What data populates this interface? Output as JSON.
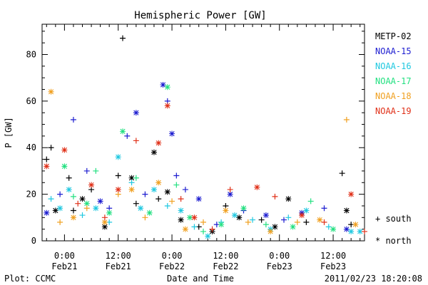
{
  "chart_data": {
    "type": "scatter",
    "title": "Hemispheric Power [GW]",
    "xlabel": "Date and Time",
    "ylabel": "P [GW]",
    "x_unit": "hours",
    "xlim": [
      "2011-02-20 19:00",
      "2011-02-23 19:00"
    ],
    "ylim": [
      0,
      93
    ],
    "yticks": [
      0,
      20,
      40,
      60,
      80
    ],
    "xticks": [
      {
        "time": "2011-02-21 00:00",
        "line1": "0:00",
        "line2": "Feb21"
      },
      {
        "time": "2011-02-21 12:00",
        "line1": "12:00",
        "line2": "Feb21"
      },
      {
        "time": "2011-02-22 00:00",
        "line1": "0:00",
        "line2": "Feb22"
      },
      {
        "time": "2011-02-22 12:00",
        "line1": "12:00",
        "line2": "Feb22"
      },
      {
        "time": "2011-02-23 00:00",
        "line1": "0:00",
        "line2": "Feb23"
      },
      {
        "time": "2011-02-23 12:00",
        "line1": "12:00",
        "line2": "Feb23"
      }
    ],
    "markers": {
      "south": "+",
      "north": "*"
    },
    "series": [
      {
        "name": "METP-02",
        "color": "#000000",
        "points": [
          {
            "x": "2011-02-20 20:00",
            "y": 35,
            "h": "S"
          },
          {
            "x": "2011-02-20 21:00",
            "y": 40,
            "h": "S"
          },
          {
            "x": "2011-02-20 22:00",
            "y": 13,
            "h": "N"
          },
          {
            "x": "2011-02-21 01:00",
            "y": 27,
            "h": "S"
          },
          {
            "x": "2011-02-21 02:00",
            "y": 13,
            "h": "S"
          },
          {
            "x": "2011-02-21 04:00",
            "y": 18,
            "h": "N"
          },
          {
            "x": "2011-02-21 06:00",
            "y": 22,
            "h": "S"
          },
          {
            "x": "2011-02-21 09:00",
            "y": 6,
            "h": "N"
          },
          {
            "x": "2011-02-21 12:00",
            "y": 28,
            "h": "S"
          },
          {
            "x": "2011-02-21 13:00",
            "y": 87,
            "h": "S"
          },
          {
            "x": "2011-02-21 15:00",
            "y": 27,
            "h": "N"
          },
          {
            "x": "2011-02-21 16:00",
            "y": 16,
            "h": "S"
          },
          {
            "x": "2011-02-21 20:00",
            "y": 38,
            "h": "N"
          },
          {
            "x": "2011-02-21 21:00",
            "y": 18,
            "h": "S"
          },
          {
            "x": "2011-02-21 23:00",
            "y": 21,
            "h": "N"
          },
          {
            "x": "2011-02-22 02:00",
            "y": 9,
            "h": "N"
          },
          {
            "x": "2011-02-22 06:00",
            "y": 6,
            "h": "S"
          },
          {
            "x": "2011-02-22 09:00",
            "y": 4,
            "h": "N"
          },
          {
            "x": "2011-02-22 12:00",
            "y": 15,
            "h": "S"
          },
          {
            "x": "2011-02-22 15:00",
            "y": 10,
            "h": "N"
          },
          {
            "x": "2011-02-22 20:00",
            "y": 9,
            "h": "S"
          },
          {
            "x": "2011-02-22 23:00",
            "y": 6,
            "h": "N"
          },
          {
            "x": "2011-02-23 02:00",
            "y": 18,
            "h": "N"
          },
          {
            "x": "2011-02-23 06:00",
            "y": 8,
            "h": "S"
          },
          {
            "x": "2011-02-23 14:00",
            "y": 29,
            "h": "S"
          },
          {
            "x": "2011-02-23 15:00",
            "y": 13,
            "h": "N"
          },
          {
            "x": "2011-02-23 16:00",
            "y": 7,
            "h": "S"
          }
        ]
      },
      {
        "name": "NOAA-15",
        "color": "#1c1cd0",
        "points": [
          {
            "x": "2011-02-20 20:00",
            "y": 12,
            "h": "N"
          },
          {
            "x": "2011-02-20 23:00",
            "y": 20,
            "h": "S"
          },
          {
            "x": "2011-02-21 02:00",
            "y": 52,
            "h": "S"
          },
          {
            "x": "2011-02-21 05:00",
            "y": 30,
            "h": "S"
          },
          {
            "x": "2011-02-21 08:00",
            "y": 17,
            "h": "N"
          },
          {
            "x": "2011-02-21 10:00",
            "y": 14,
            "h": "S"
          },
          {
            "x": "2011-02-21 14:00",
            "y": 45,
            "h": "S"
          },
          {
            "x": "2011-02-21 16:00",
            "y": 55,
            "h": "N"
          },
          {
            "x": "2011-02-21 18:00",
            "y": 20,
            "h": "S"
          },
          {
            "x": "2011-02-21 22:00",
            "y": 67,
            "h": "N"
          },
          {
            "x": "2011-02-21 23:00",
            "y": 60,
            "h": "S"
          },
          {
            "x": "2011-02-22 00:00",
            "y": 46,
            "h": "N"
          },
          {
            "x": "2011-02-22 01:00",
            "y": 28,
            "h": "S"
          },
          {
            "x": "2011-02-22 03:00",
            "y": 22,
            "h": "S"
          },
          {
            "x": "2011-02-22 06:00",
            "y": 18,
            "h": "N"
          },
          {
            "x": "2011-02-22 10:00",
            "y": 7,
            "h": "S"
          },
          {
            "x": "2011-02-22 13:00",
            "y": 20,
            "h": "N"
          },
          {
            "x": "2011-02-22 16:00",
            "y": 13,
            "h": "S"
          },
          {
            "x": "2011-02-22 21:00",
            "y": 11,
            "h": "N"
          },
          {
            "x": "2011-02-23 01:00",
            "y": 9,
            "h": "S"
          },
          {
            "x": "2011-02-23 05:00",
            "y": 12,
            "h": "N"
          },
          {
            "x": "2011-02-23 10:00",
            "y": 14,
            "h": "S"
          },
          {
            "x": "2011-02-23 15:00",
            "y": 5,
            "h": "N"
          }
        ]
      },
      {
        "name": "NOAA-16",
        "color": "#1fc8e0",
        "points": [
          {
            "x": "2011-02-20 21:00",
            "y": 18,
            "h": "S"
          },
          {
            "x": "2011-02-20 23:00",
            "y": 14,
            "h": "N"
          },
          {
            "x": "2011-02-21 01:00",
            "y": 22,
            "h": "N"
          },
          {
            "x": "2011-02-21 04:00",
            "y": 11,
            "h": "S"
          },
          {
            "x": "2011-02-21 07:00",
            "y": 14,
            "h": "N"
          },
          {
            "x": "2011-02-21 10:00",
            "y": 8,
            "h": "S"
          },
          {
            "x": "2011-02-21 12:00",
            "y": 36,
            "h": "N"
          },
          {
            "x": "2011-02-21 15:00",
            "y": 25,
            "h": "S"
          },
          {
            "x": "2011-02-21 17:00",
            "y": 14,
            "h": "N"
          },
          {
            "x": "2011-02-21 20:00",
            "y": 22,
            "h": "N"
          },
          {
            "x": "2011-02-21 23:00",
            "y": 15,
            "h": "S"
          },
          {
            "x": "2011-02-22 02:00",
            "y": 13,
            "h": "N"
          },
          {
            "x": "2011-02-22 05:00",
            "y": 6,
            "h": "S"
          },
          {
            "x": "2011-02-22 08:00",
            "y": 2,
            "h": "N"
          },
          {
            "x": "2011-02-22 11:00",
            "y": 8,
            "h": "S"
          },
          {
            "x": "2011-02-22 14:00",
            "y": 11,
            "h": "N"
          },
          {
            "x": "2011-02-22 18:00",
            "y": 9,
            "h": "S"
          },
          {
            "x": "2011-02-22 22:00",
            "y": 5,
            "h": "N"
          },
          {
            "x": "2011-02-23 02:00",
            "y": 10,
            "h": "S"
          },
          {
            "x": "2011-02-23 06:00",
            "y": 13,
            "h": "N"
          },
          {
            "x": "2011-02-23 11:00",
            "y": 6,
            "h": "S"
          },
          {
            "x": "2011-02-23 16:00",
            "y": 4,
            "h": "N"
          },
          {
            "x": "2011-02-23 18:00",
            "y": 4,
            "h": "N"
          }
        ]
      },
      {
        "name": "NOAA-17",
        "color": "#22e080",
        "points": [
          {
            "x": "2011-02-21 00:00",
            "y": 32,
            "h": "N"
          },
          {
            "x": "2011-02-21 02:00",
            "y": 19,
            "h": "S"
          },
          {
            "x": "2011-02-21 05:00",
            "y": 16,
            "h": "N"
          },
          {
            "x": "2011-02-21 07:00",
            "y": 30,
            "h": "S"
          },
          {
            "x": "2011-02-21 10:00",
            "y": 12,
            "h": "N"
          },
          {
            "x": "2011-02-21 13:00",
            "y": 47,
            "h": "N"
          },
          {
            "x": "2011-02-21 16:00",
            "y": 27,
            "h": "S"
          },
          {
            "x": "2011-02-21 19:00",
            "y": 12,
            "h": "N"
          },
          {
            "x": "2011-02-21 23:00",
            "y": 66,
            "h": "N"
          },
          {
            "x": "2011-02-22 01:00",
            "y": 24,
            "h": "S"
          },
          {
            "x": "2011-02-22 04:00",
            "y": 10,
            "h": "N"
          },
          {
            "x": "2011-02-22 07:00",
            "y": 4,
            "h": "S"
          },
          {
            "x": "2011-02-22 11:00",
            "y": 7,
            "h": "N"
          },
          {
            "x": "2011-02-22 16:00",
            "y": 14,
            "h": "N"
          },
          {
            "x": "2011-02-22 21:00",
            "y": 7,
            "h": "S"
          },
          {
            "x": "2011-02-23 03:00",
            "y": 6,
            "h": "N"
          },
          {
            "x": "2011-02-23 07:00",
            "y": 17,
            "h": "S"
          },
          {
            "x": "2011-02-23 12:00",
            "y": 5,
            "h": "N"
          }
        ]
      },
      {
        "name": "NOAA-18",
        "color": "#f0a020",
        "points": [
          {
            "x": "2011-02-20 21:00",
            "y": 64,
            "h": "N"
          },
          {
            "x": "2011-02-20 23:00",
            "y": 8,
            "h": "S"
          },
          {
            "x": "2011-02-21 02:00",
            "y": 10,
            "h": "N"
          },
          {
            "x": "2011-02-21 05:00",
            "y": 14,
            "h": "S"
          },
          {
            "x": "2011-02-21 09:00",
            "y": 8,
            "h": "N"
          },
          {
            "x": "2011-02-21 12:00",
            "y": 20,
            "h": "S"
          },
          {
            "x": "2011-02-21 15:00",
            "y": 22,
            "h": "N"
          },
          {
            "x": "2011-02-21 18:00",
            "y": 10,
            "h": "S"
          },
          {
            "x": "2011-02-21 21:00",
            "y": 25,
            "h": "N"
          },
          {
            "x": "2011-02-22 00:00",
            "y": 17,
            "h": "S"
          },
          {
            "x": "2011-02-22 03:00",
            "y": 5,
            "h": "N"
          },
          {
            "x": "2011-02-22 07:00",
            "y": 8,
            "h": "S"
          },
          {
            "x": "2011-02-22 12:00",
            "y": 13,
            "h": "N"
          },
          {
            "x": "2011-02-22 17:00",
            "y": 8,
            "h": "S"
          },
          {
            "x": "2011-02-22 22:00",
            "y": 4,
            "h": "N"
          },
          {
            "x": "2011-02-23 04:00",
            "y": 8,
            "h": "S"
          },
          {
            "x": "2011-02-23 09:00",
            "y": 9,
            "h": "N"
          },
          {
            "x": "2011-02-23 15:00",
            "y": 52,
            "h": "S"
          },
          {
            "x": "2011-02-23 17:00",
            "y": 7,
            "h": "N"
          }
        ]
      },
      {
        "name": "NOAA-19",
        "color": "#e03018",
        "points": [
          {
            "x": "2011-02-20 20:00",
            "y": 32,
            "h": "N"
          },
          {
            "x": "2011-02-21 00:00",
            "y": 39,
            "h": "N"
          },
          {
            "x": "2011-02-21 03:00",
            "y": 16,
            "h": "S"
          },
          {
            "x": "2011-02-21 06:00",
            "y": 24,
            "h": "N"
          },
          {
            "x": "2011-02-21 09:00",
            "y": 10,
            "h": "S"
          },
          {
            "x": "2011-02-21 12:00",
            "y": 22,
            "h": "N"
          },
          {
            "x": "2011-02-21 16:00",
            "y": 43,
            "h": "S"
          },
          {
            "x": "2011-02-21 21:00",
            "y": 42,
            "h": "N"
          },
          {
            "x": "2011-02-21 23:00",
            "y": 58,
            "h": "N"
          },
          {
            "x": "2011-02-22 02:00",
            "y": 18,
            "h": "S"
          },
          {
            "x": "2011-02-22 05:00",
            "y": 10,
            "h": "N"
          },
          {
            "x": "2011-02-22 09:00",
            "y": 5,
            "h": "S"
          },
          {
            "x": "2011-02-22 13:00",
            "y": 22,
            "h": "S"
          },
          {
            "x": "2011-02-22 19:00",
            "y": 23,
            "h": "N"
          },
          {
            "x": "2011-02-22 23:00",
            "y": 19,
            "h": "S"
          },
          {
            "x": "2011-02-23 05:00",
            "y": 11,
            "h": "N"
          },
          {
            "x": "2011-02-23 10:00",
            "y": 8,
            "h": "S"
          },
          {
            "x": "2011-02-23 16:00",
            "y": 20,
            "h": "N"
          },
          {
            "x": "2011-02-23 19:00",
            "y": 4,
            "h": "S"
          }
        ]
      }
    ]
  },
  "legend": {
    "south_label": "+ south",
    "north_label": "* north"
  },
  "footer": {
    "left": "Plot: CCMC",
    "timestamp": "2011/02/23 18:20:08"
  }
}
